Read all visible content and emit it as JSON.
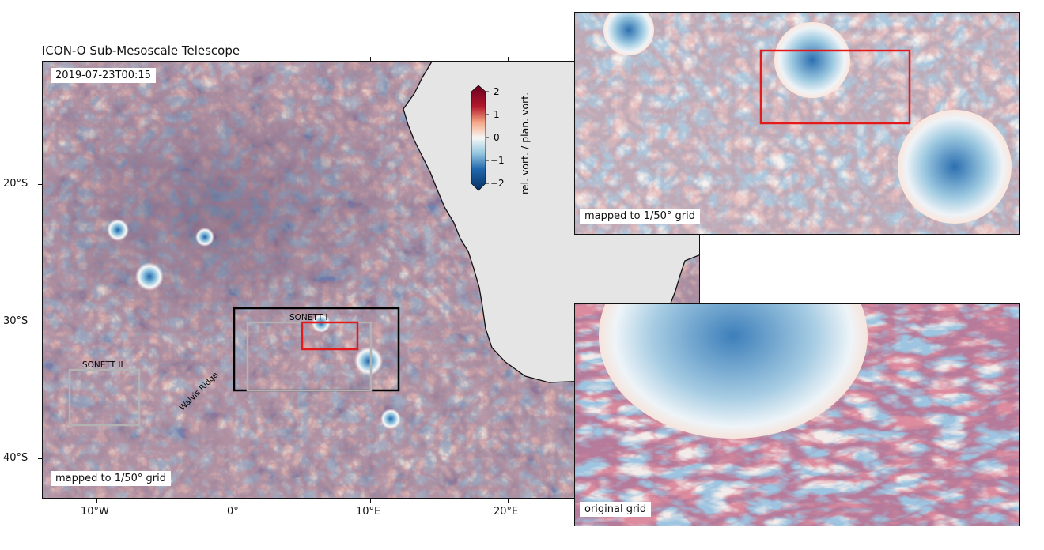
{
  "title": "ICON-O Sub-Mesoscale Telescope",
  "timestamp": "2019-07-23T00:15",
  "main_grid_label": "mapped to 1/50° grid",
  "inset_top_label": "mapped to 1/50° grid",
  "inset_bottom_label": "original grid",
  "regions": {
    "sonett_1": "SONETT I",
    "sonett_2": "SONETT II",
    "ridge": "Walvis Ridge"
  },
  "colorbar": {
    "label": "rel. vort. / plan. vort.",
    "ticks": [
      "2",
      "1",
      "0",
      "−1",
      "−2"
    ],
    "cmap": "RdBu_r",
    "colors": {
      "high": "#67001f",
      "mid_high": "#d6604d",
      "zero": "#f7f7f7",
      "mid_low": "#4393c3",
      "low": "#053061"
    }
  },
  "axes": {
    "x_ticks": [
      "10°W",
      "0°",
      "10°E",
      "20°E"
    ],
    "y_ticks": [
      "20°S",
      "30°S",
      "40°S"
    ]
  },
  "chart_data": {
    "type": "heatmap",
    "title": "ICON-O Sub-Mesoscale Telescope",
    "variable": "rel. vort. / plan. vort.",
    "value_range": [
      -2,
      2
    ],
    "x_tick_values_deg_lon": [
      -10,
      0,
      10,
      20
    ],
    "y_tick_values_deg_lat": [
      -20,
      -30,
      -40
    ],
    "regions_deg": {
      "black_box": {
        "lon": [
          0,
          12
        ],
        "lat": [
          -29,
          -35
        ]
      },
      "sonett_1_gray_box": {
        "lon": [
          1,
          10
        ],
        "lat": [
          -30,
          -35
        ]
      },
      "red_box": {
        "lon": [
          5,
          9
        ],
        "lat": [
          -30,
          -32
        ]
      },
      "sonett_2_gray_box": {
        "lon": [
          -12,
          -7
        ],
        "lat": [
          -33.5,
          -37.5
        ]
      }
    },
    "land_color": "#e5e5e5"
  }
}
